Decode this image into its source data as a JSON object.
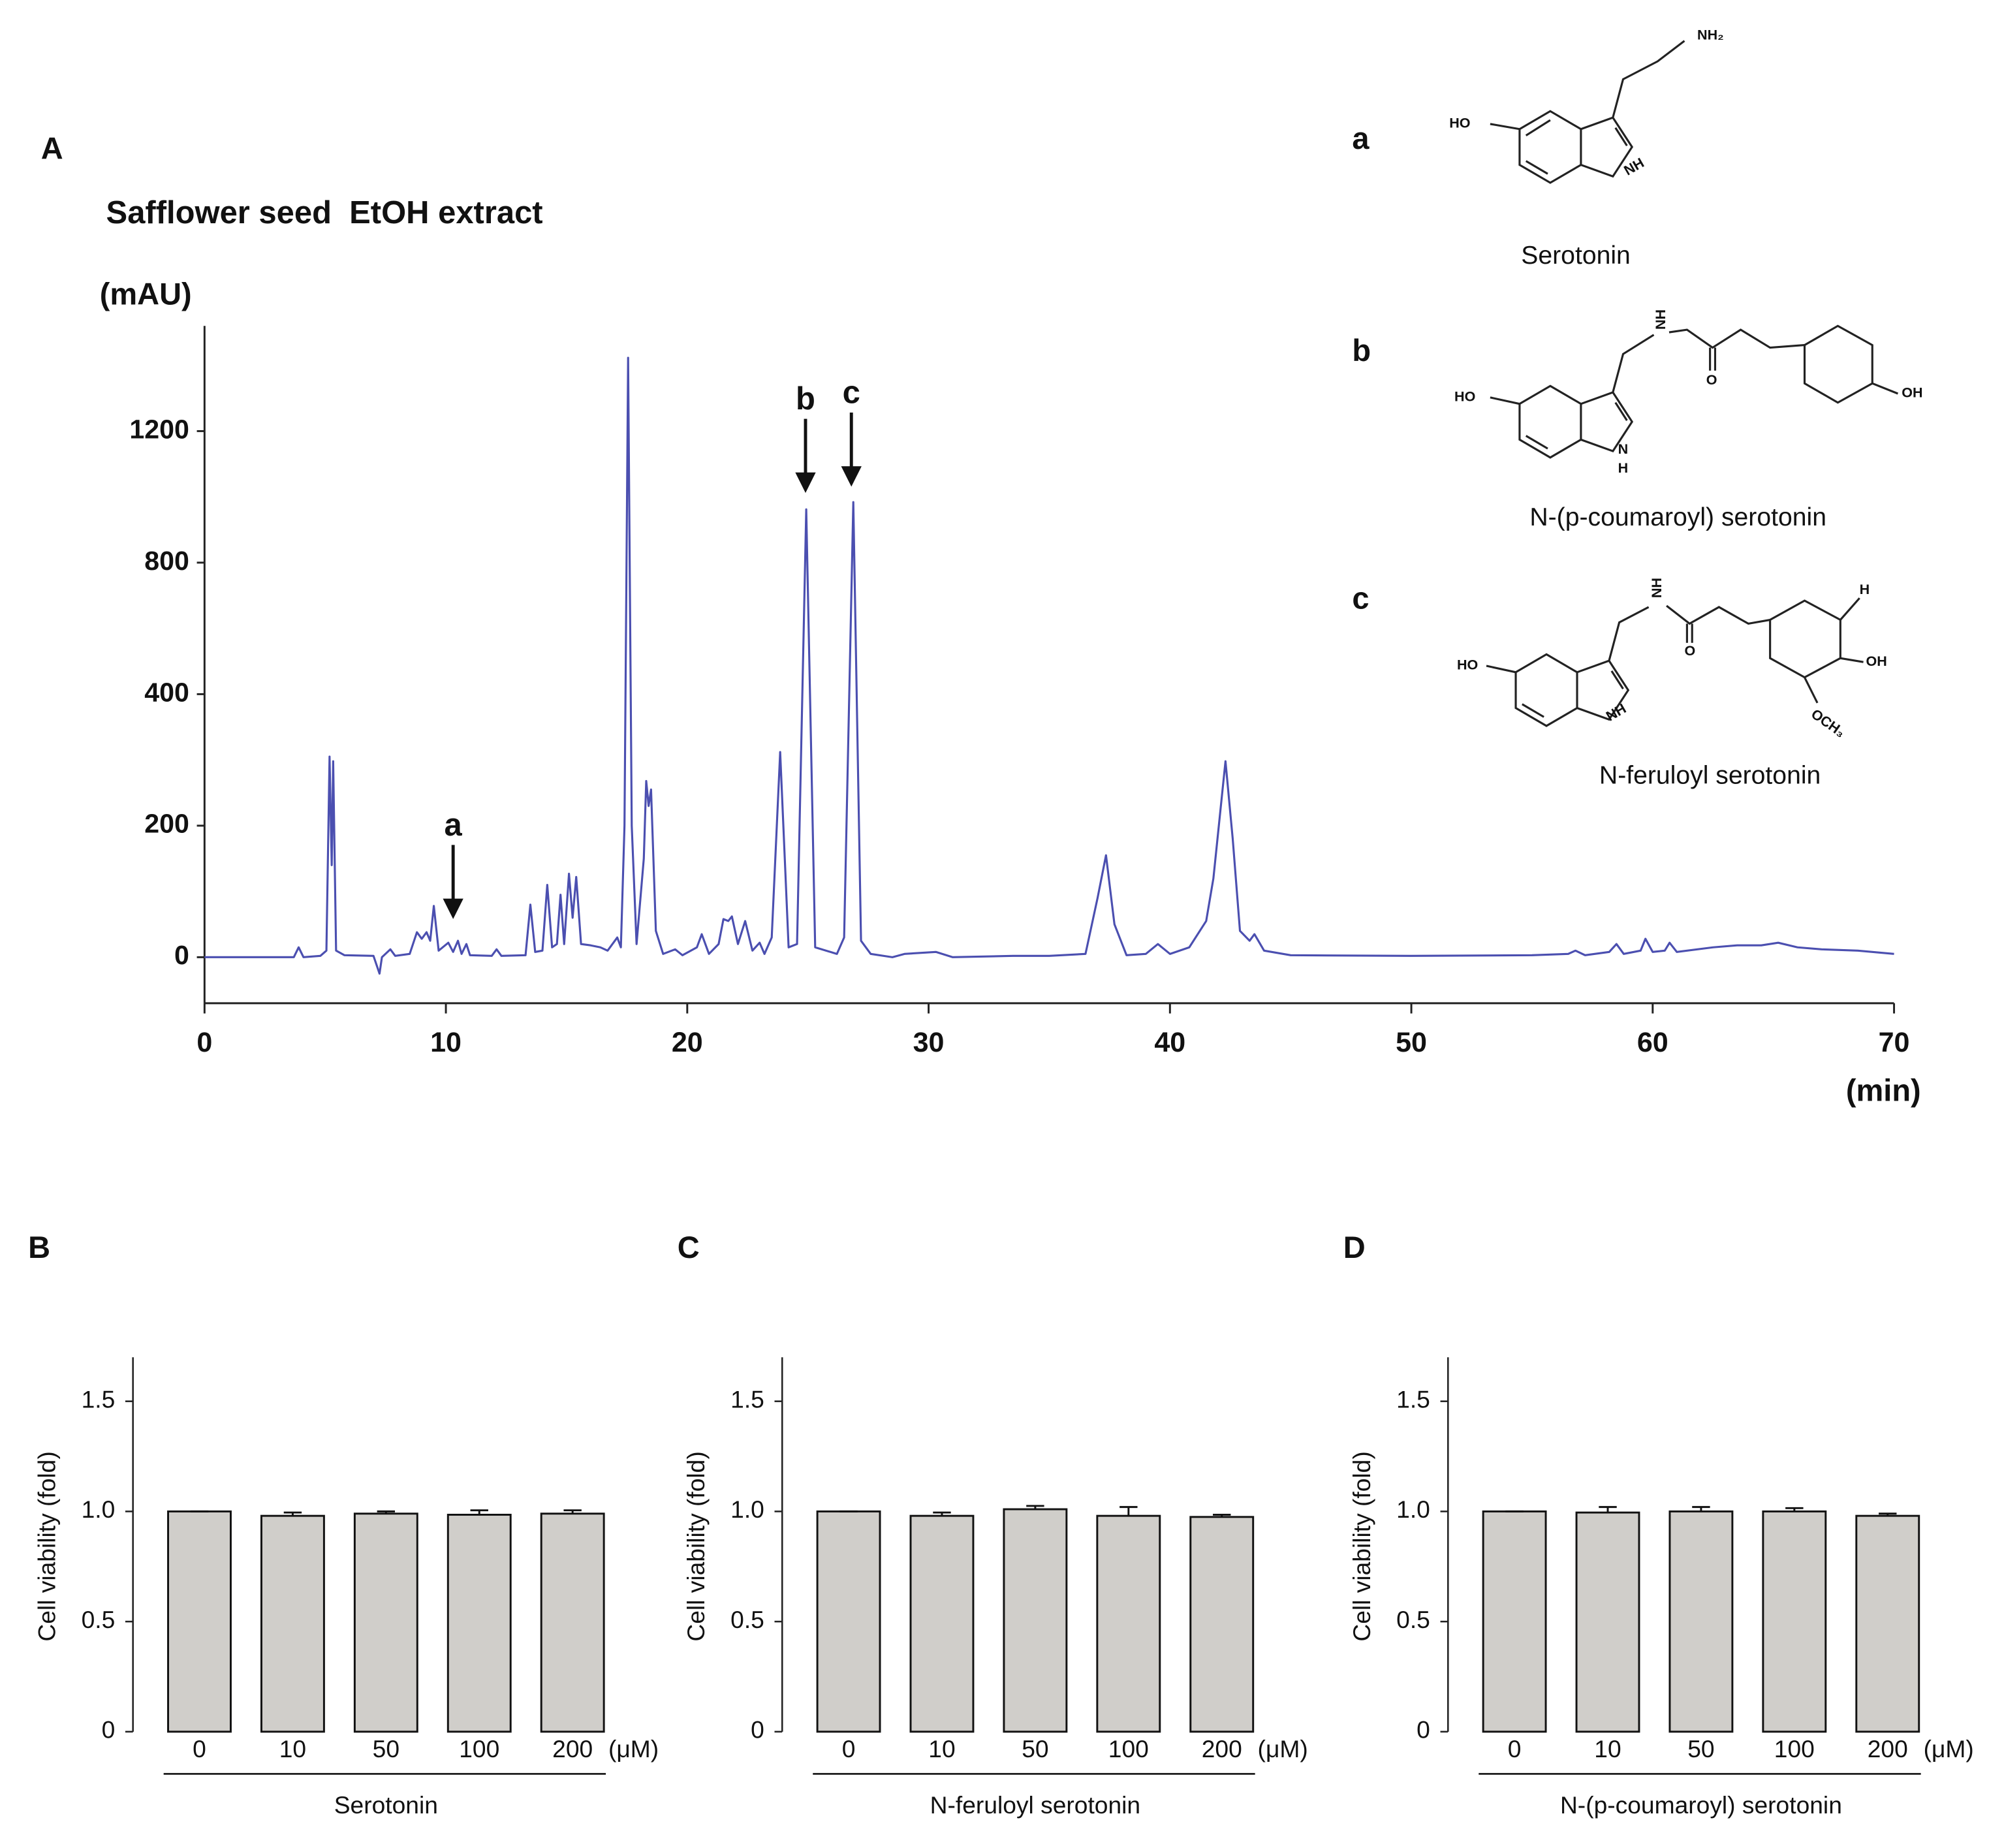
{
  "chart_data": [
    {
      "type": "line",
      "panel": "A",
      "title": "Safflower seed  EtOH extract",
      "ylabel": "(mAU)",
      "xlabel": "(min)",
      "xlim": [
        0,
        70
      ],
      "xticks": [
        0,
        10,
        20,
        30,
        40,
        50,
        60,
        70
      ],
      "ylim": [
        -70,
        1520
      ],
      "yticks": [
        0,
        200,
        400,
        800,
        1200
      ],
      "yscale": "piecewise",
      "color": "#4b4fb0",
      "x": [
        0,
        3.7,
        3.9,
        4.1,
        4.8,
        5.05,
        5.18,
        5.27,
        5.33,
        5.45,
        5.8,
        7.0,
        7.25,
        7.35,
        7.7,
        7.9,
        8.5,
        8.8,
        9.0,
        9.2,
        9.35,
        9.5,
        9.7,
        10.1,
        10.3,
        10.5,
        10.65,
        10.85,
        11.0,
        11.9,
        12.1,
        12.3,
        13.3,
        13.5,
        13.7,
        14.0,
        14.2,
        14.4,
        14.6,
        14.75,
        14.9,
        15.1,
        15.25,
        15.4,
        15.6,
        16.0,
        16.4,
        16.7,
        17.1,
        17.25,
        17.4,
        17.55,
        17.7,
        17.9,
        18.2,
        18.3,
        18.4,
        18.5,
        18.7,
        19.0,
        19.5,
        19.8,
        20.4,
        20.6,
        20.9,
        21.3,
        21.5,
        21.7,
        21.85,
        22.1,
        22.4,
        22.7,
        23.0,
        23.2,
        23.5,
        23.85,
        24.2,
        24.55,
        24.93,
        25.3,
        26.2,
        26.5,
        26.88,
        27.2,
        27.6,
        28.5,
        29.0,
        30.3,
        31,
        33.5,
        35,
        36.5,
        37.0,
        37.35,
        37.7,
        38.2,
        39.0,
        39.5,
        40.0,
        40.8,
        41.5,
        41.8,
        42.3,
        42.6,
        42.9,
        43.3,
        43.5,
        43.9,
        45,
        50,
        55,
        56.5,
        56.8,
        57.2,
        58.2,
        58.5,
        58.8,
        59.5,
        59.7,
        60.0,
        60.5,
        60.7,
        61.0,
        62.5,
        63.5,
        64.5,
        65.2,
        66,
        67,
        68.5,
        70
      ],
      "values": [
        0,
        0,
        15,
        0,
        2,
        10,
        305,
        140,
        298,
        10,
        3,
        2,
        -25,
        0,
        12,
        2,
        5,
        38,
        28,
        38,
        25,
        78,
        10,
        22,
        8,
        25,
        5,
        20,
        3,
        2,
        12,
        2,
        3,
        80,
        8,
        10,
        110,
        15,
        20,
        95,
        20,
        127,
        60,
        122,
        20,
        18,
        15,
        10,
        30,
        15,
        200,
        1423,
        200,
        20,
        150,
        268,
        230,
        255,
        40,
        5,
        12,
        3,
        15,
        35,
        5,
        20,
        58,
        55,
        62,
        20,
        55,
        10,
        22,
        5,
        30,
        312,
        15,
        20,
        962,
        15,
        5,
        30,
        984,
        25,
        5,
        0,
        5,
        8,
        0,
        2,
        2,
        5,
        90,
        155,
        50,
        3,
        5,
        20,
        5,
        15,
        55,
        120,
        298,
        180,
        40,
        25,
        35,
        10,
        3,
        2,
        3,
        5,
        10,
        3,
        8,
        20,
        5,
        10,
        28,
        8,
        10,
        22,
        8,
        15,
        18,
        18,
        22,
        15,
        12,
        10,
        5
      ],
      "annotations": [
        {
          "text": "a",
          "x": 10.3,
          "y": 58
        },
        {
          "text": "b",
          "x": 24.9,
          "y": 1012
        },
        {
          "text": "c",
          "x": 26.8,
          "y": 1031
        }
      ]
    },
    {
      "type": "bar",
      "panel": "B",
      "ylabel": "Cell viability (fold)",
      "xlabel": "Serotonin",
      "unit": "(μM)",
      "categories": [
        "0",
        "10",
        "50",
        "100",
        "200"
      ],
      "values": [
        1.0,
        0.98,
        0.99,
        0.985,
        0.99
      ],
      "errors": [
        0,
        0.015,
        0.01,
        0.02,
        0.015
      ],
      "ylim": [
        0,
        1.7
      ],
      "yticks": [
        0,
        0.5,
        {
          "value": 1,
          "label": "1.0"
        },
        1.5
      ],
      "color": "#d0ceca"
    },
    {
      "type": "bar",
      "panel": "C",
      "ylabel": "Cell viability (fold)",
      "xlabel": "N-feruloyl serotonin",
      "unit": "(μM)",
      "categories": [
        "0",
        "10",
        "50",
        "100",
        "200"
      ],
      "values": [
        1.0,
        0.98,
        1.01,
        0.98,
        0.975
      ],
      "errors": [
        0,
        0.015,
        0.015,
        0.04,
        0.01
      ],
      "ylim": [
        0,
        1.7
      ],
      "yticks": [
        0,
        0.5,
        {
          "value": 1,
          "label": "1.0"
        },
        1.5
      ],
      "color": "#d0ceca"
    },
    {
      "type": "bar",
      "panel": "D",
      "ylabel": "Cell viability (fold)",
      "xlabel": "N-(p-coumaroyl) serotonin",
      "unit": "(μM)",
      "categories": [
        "0",
        "10",
        "50",
        "100",
        "200"
      ],
      "values": [
        1.0,
        0.995,
        1.0,
        1.0,
        0.98
      ],
      "errors": [
        0,
        0.025,
        0.02,
        0.015,
        0.01
      ],
      "ylim": [
        0,
        1.7
      ],
      "yticks": [
        0,
        0.5,
        {
          "value": 1,
          "label": "1.0"
        },
        1.5
      ],
      "color": "#d0ceca"
    }
  ],
  "structures": [
    {
      "label": "a",
      "name": "Serotonin",
      "atoms": [
        "NH₂",
        "HO",
        "NH"
      ]
    },
    {
      "label": "b",
      "name": "N-(p-coumaroyl) serotonin",
      "atoms": [
        "HO",
        "N",
        "H",
        "NH",
        "O",
        "OH"
      ]
    },
    {
      "label": "c",
      "name": "N-feruloyl serotonin",
      "atoms": [
        "HO",
        "NH",
        "NH",
        "O",
        "H",
        "OH",
        "OCH₃"
      ]
    }
  ]
}
